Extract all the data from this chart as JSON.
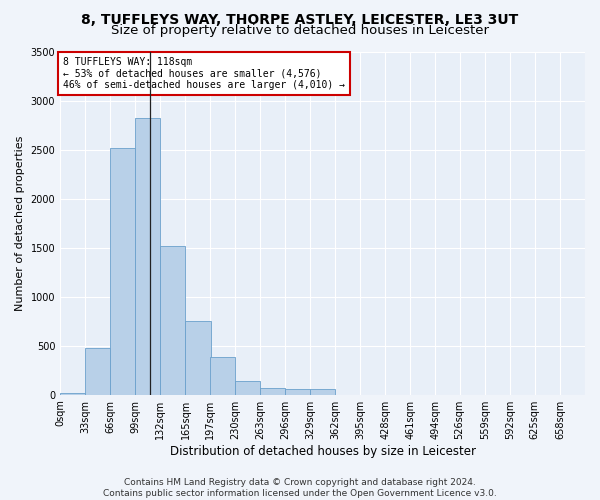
{
  "title_line1": "8, TUFFLEYS WAY, THORPE ASTLEY, LEICESTER, LE3 3UT",
  "title_line2": "Size of property relative to detached houses in Leicester",
  "xlabel": "Distribution of detached houses by size in Leicester",
  "ylabel": "Number of detached properties",
  "bar_color": "#b8d0e8",
  "bar_edge_color": "#6aa0cc",
  "annotation_line1": "8 TUFFLEYS WAY: 118sqm",
  "annotation_line2": "← 53% of detached houses are smaller (4,576)",
  "annotation_line3": "46% of semi-detached houses are larger (4,010) →",
  "annotation_box_color": "#ffffff",
  "annotation_box_edge_color": "#cc0000",
  "property_line_x": 118,
  "categories": [
    "0sqm",
    "33sqm",
    "66sqm",
    "99sqm",
    "132sqm",
    "165sqm",
    "197sqm",
    "230sqm",
    "263sqm",
    "296sqm",
    "329sqm",
    "362sqm",
    "395sqm",
    "428sqm",
    "461sqm",
    "494sqm",
    "526sqm",
    "559sqm",
    "592sqm",
    "625sqm",
    "658sqm"
  ],
  "bin_edges": [
    0,
    33,
    66,
    99,
    132,
    165,
    197,
    230,
    263,
    296,
    329,
    362,
    395,
    428,
    461,
    494,
    526,
    559,
    592,
    625,
    658
  ],
  "bin_width": 33,
  "values": [
    20,
    480,
    2520,
    2820,
    1520,
    750,
    380,
    140,
    70,
    55,
    55,
    0,
    0,
    0,
    0,
    0,
    0,
    0,
    0,
    0,
    0
  ],
  "ylim": [
    0,
    3500
  ],
  "yticks": [
    0,
    500,
    1000,
    1500,
    2000,
    2500,
    3000,
    3500
  ],
  "background_color": "#e8eff8",
  "grid_color": "#ffffff",
  "footer_line1": "Contains HM Land Registry data © Crown copyright and database right 2024.",
  "footer_line2": "Contains public sector information licensed under the Open Government Licence v3.0.",
  "title_fontsize": 10,
  "subtitle_fontsize": 9.5,
  "xlabel_fontsize": 8.5,
  "ylabel_fontsize": 8,
  "tick_fontsize": 7,
  "footer_fontsize": 6.5,
  "fig_width": 6.0,
  "fig_height": 5.0,
  "fig_dpi": 100
}
